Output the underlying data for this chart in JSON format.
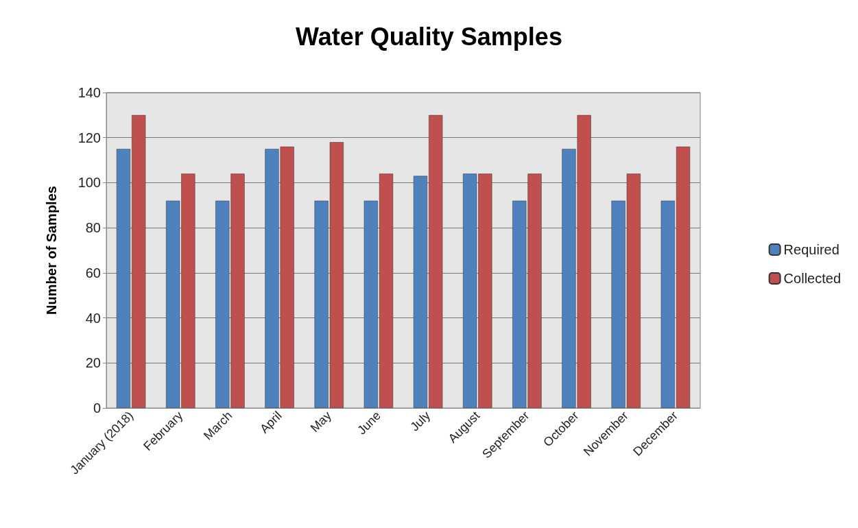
{
  "chart_data": {
    "type": "bar",
    "title": "Water Quality Samples",
    "ylabel": "Number of Samples",
    "categories": [
      "January (2018)",
      "February",
      "March",
      "April",
      "May",
      "June",
      "July",
      "August",
      "September",
      "October",
      "November",
      "December"
    ],
    "series": [
      {
        "name": "Required",
        "color": "#4f81bd",
        "values": [
          115,
          92,
          92,
          115,
          92,
          92,
          103,
          104,
          92,
          115,
          92,
          92
        ]
      },
      {
        "name": "Collected",
        "color": "#c0504d",
        "values": [
          130,
          104,
          104,
          116,
          118,
          104,
          130,
          104,
          104,
          130,
          104,
          116
        ]
      }
    ],
    "ylim": [
      0,
      140
    ],
    "yticks": [
      0,
      20,
      40,
      60,
      80,
      100,
      120,
      140
    ],
    "grid": "y",
    "legend": "right"
  }
}
